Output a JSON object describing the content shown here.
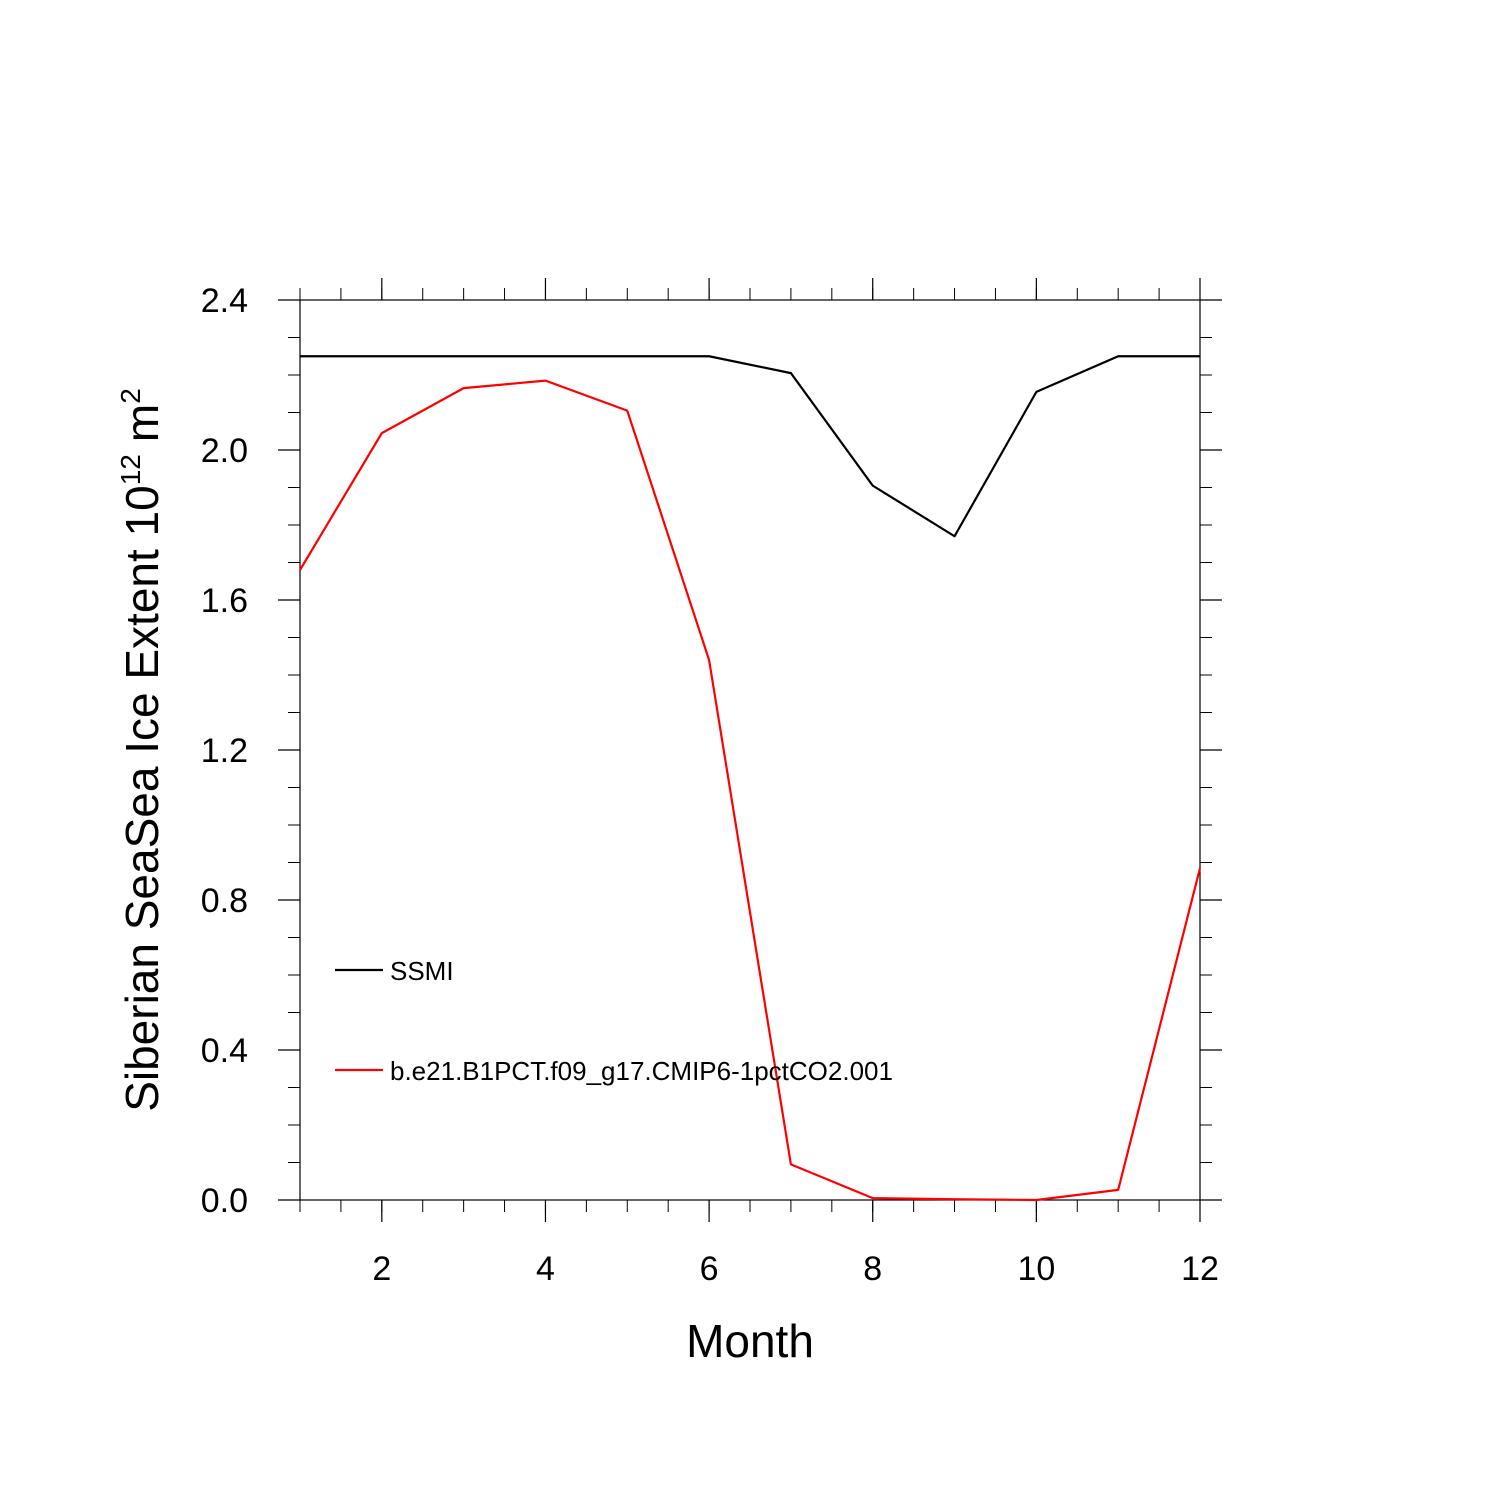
{
  "chart_data": {
    "type": "line",
    "title": "",
    "xlabel": "Month",
    "ylabel": "Siberian SeaSea Ice Extent 10",
    "ylabel_superscript": "12",
    "ylabel_unit": "m",
    "ylabel_unit_superscript": "2",
    "xlim": [
      1,
      12
    ],
    "ylim": [
      0,
      2.4
    ],
    "xticks": [
      2,
      4,
      6,
      8,
      10,
      12
    ],
    "xtick_labels": [
      "2",
      "4",
      "6",
      "8",
      "10",
      "12"
    ],
    "yticks": [
      0,
      0.4,
      0.8,
      1.2,
      1.6,
      2.0,
      2.4
    ],
    "ytick_labels": [
      "0.0",
      "0.4",
      "0.8",
      "1.2",
      "1.6",
      "2.0",
      "2.4"
    ],
    "grid": false,
    "legend_position": "lower-left inside plot",
    "x": [
      1,
      2,
      3,
      4,
      5,
      6,
      7,
      8,
      9,
      10,
      11,
      12
    ],
    "series": [
      {
        "name": "SSMI",
        "color": "#000000",
        "values": [
          2.25,
          2.25,
          2.25,
          2.25,
          2.25,
          2.25,
          2.205,
          1.905,
          1.77,
          2.155,
          2.25,
          2.25
        ]
      },
      {
        "name": "b.e21.B1PCT.f09_g17.CMIP6-1pctCO2.001",
        "color": "#ff0000",
        "values": [
          1.68,
          2.045,
          2.165,
          2.185,
          2.105,
          1.44,
          0.095,
          0.005,
          0.002,
          0.0,
          0.027,
          0.885
        ]
      }
    ]
  }
}
